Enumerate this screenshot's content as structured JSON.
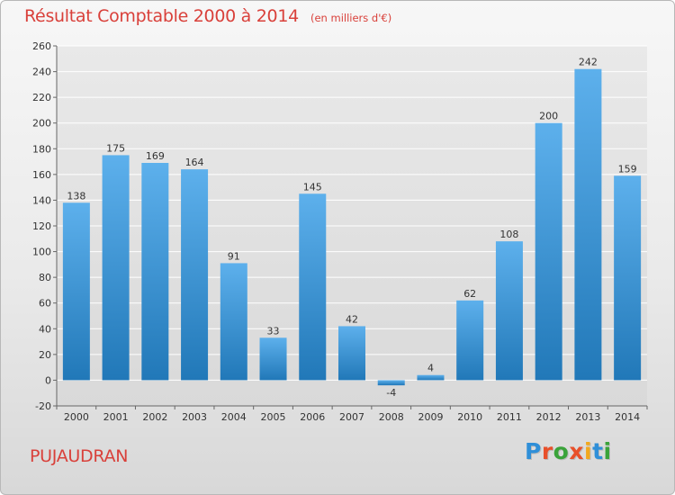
{
  "title": "Résultat Comptable 2000 à 2014",
  "subtitle": "(en milliers d'€)",
  "commune": "PUJAUDRAN",
  "brand": {
    "text": "Proxiti",
    "colors": [
      "#2f8fd8",
      "#e8502a",
      "#3aa33a",
      "#e8502a",
      "#f2a81d",
      "#2f8fd8",
      "#3aa33a"
    ]
  },
  "colors": {
    "title": "#d9403a",
    "bar_top": "#5db0ec",
    "bar_bottom": "#2178b8",
    "grid": "#ffffff"
  },
  "chart_data": {
    "type": "bar",
    "title": "Résultat Comptable 2000 à 2014",
    "subtitle": "(en milliers d'€)",
    "categories": [
      "2000",
      "2001",
      "2002",
      "2003",
      "2004",
      "2005",
      "2006",
      "2007",
      "2008",
      "2009",
      "2010",
      "2011",
      "2012",
      "2013",
      "2014"
    ],
    "values": [
      138,
      175,
      169,
      164,
      91,
      33,
      145,
      42,
      -4,
      4,
      62,
      108,
      200,
      242,
      159
    ],
    "ylim": [
      -20,
      260
    ],
    "yticks": [
      -20,
      0,
      20,
      40,
      60,
      80,
      100,
      120,
      140,
      160,
      180,
      200,
      220,
      240,
      260
    ],
    "grid": true,
    "legend": "none"
  }
}
